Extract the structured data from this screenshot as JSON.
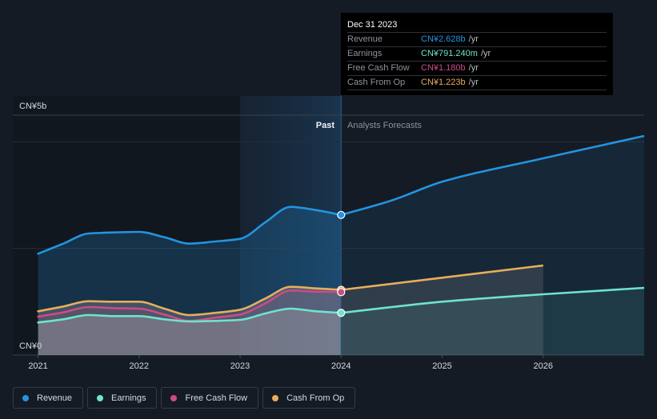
{
  "chart_data": {
    "type": "area",
    "title": "",
    "xlabel": "",
    "ylabel": "",
    "unit": "CN¥ billions",
    "xlim": [
      2020.75,
      2027.0
    ],
    "ylim": [
      0,
      4.5
    ],
    "grid": true,
    "grid_values": [
      0,
      2,
      4
    ],
    "y_tick_labels": {
      "bottom": "CN¥0",
      "top": "CN¥5b"
    },
    "x_ticks": [
      2021,
      2022,
      2023,
      2024,
      2025,
      2026
    ],
    "x_tick_labels": [
      "2021",
      "2022",
      "2023",
      "2024",
      "2025",
      "2026"
    ],
    "regions": {
      "past_label": "Past",
      "forecast_label": "Analysts Forecasts",
      "past_shade_end": 2023,
      "highlight_start": 2023,
      "divider": 2024
    },
    "legend_placement": "bottom-left",
    "series": [
      {
        "name": "Revenue",
        "color": "#2394df",
        "past": {
          "x": [
            2021,
            2021.25,
            2021.5,
            2021.75,
            2022,
            2022.25,
            2022.5,
            2022.75,
            2023,
            2023.25,
            2023.5,
            2023.75,
            2024
          ],
          "values": [
            1.9,
            2.09,
            2.28,
            2.3,
            2.31,
            2.21,
            2.09,
            2.13,
            2.18,
            2.49,
            2.78,
            2.72,
            2.628
          ]
        },
        "forecast": {
          "x": [
            2024,
            2024.5,
            2025,
            2026,
            2027
          ],
          "values": [
            2.628,
            2.9,
            3.25,
            3.69,
            4.11
          ]
        }
      },
      {
        "name": "Cash From Op",
        "color": "#e8ad5d",
        "past": {
          "x": [
            2021,
            2021.25,
            2021.5,
            2021.75,
            2022,
            2022.25,
            2022.5,
            2022.75,
            2023,
            2023.25,
            2023.5,
            2023.75,
            2024
          ],
          "values": [
            0.82,
            0.91,
            1.01,
            1.0,
            1.0,
            0.87,
            0.75,
            0.79,
            0.85,
            1.06,
            1.28,
            1.25,
            1.223
          ]
        },
        "forecast": {
          "x": [
            2024,
            2025,
            2026
          ],
          "values": [
            1.223,
            1.45,
            1.68
          ]
        }
      },
      {
        "name": "Free Cash Flow",
        "color": "#cf4a85",
        "past": {
          "x": [
            2021,
            2021.25,
            2021.5,
            2021.75,
            2022,
            2022.25,
            2022.5,
            2022.75,
            2023,
            2023.25,
            2023.5,
            2023.75,
            2024
          ],
          "values": [
            0.72,
            0.8,
            0.9,
            0.88,
            0.87,
            0.76,
            0.64,
            0.7,
            0.76,
            0.97,
            1.21,
            1.19,
            1.18
          ]
        },
        "forecast": null
      },
      {
        "name": "Earnings",
        "color": "#6fe3cf",
        "past": {
          "x": [
            2021,
            2021.25,
            2021.5,
            2021.75,
            2022,
            2022.25,
            2022.5,
            2022.75,
            2023,
            2023.25,
            2023.5,
            2023.75,
            2024
          ],
          "values": [
            0.61,
            0.67,
            0.75,
            0.73,
            0.73,
            0.67,
            0.63,
            0.64,
            0.66,
            0.78,
            0.87,
            0.82,
            0.791
          ]
        },
        "forecast": {
          "x": [
            2024,
            2025,
            2026,
            2027
          ],
          "values": [
            0.791,
            1.0,
            1.14,
            1.26
          ]
        }
      }
    ]
  },
  "tooltip": {
    "date": "Dec 31 2023",
    "rows": [
      {
        "label": "Revenue",
        "value": "CN¥2.628b",
        "suffix": "/yr",
        "color": "#2394df"
      },
      {
        "label": "Earnings",
        "value": "CN¥791.240m",
        "suffix": "/yr",
        "color": "#6fe3cf"
      },
      {
        "label": "Free Cash Flow",
        "value": "CN¥1.180b",
        "suffix": "/yr",
        "color": "#cf4a85"
      },
      {
        "label": "Cash From Op",
        "value": "CN¥1.223b",
        "suffix": "/yr",
        "color": "#e8ad5d"
      }
    ]
  },
  "legend": {
    "items": [
      {
        "label": "Revenue",
        "color": "#2394df"
      },
      {
        "label": "Earnings",
        "color": "#6fe3cf"
      },
      {
        "label": "Free Cash Flow",
        "color": "#cf4a85"
      },
      {
        "label": "Cash From Op",
        "color": "#e8ad5d"
      }
    ]
  }
}
